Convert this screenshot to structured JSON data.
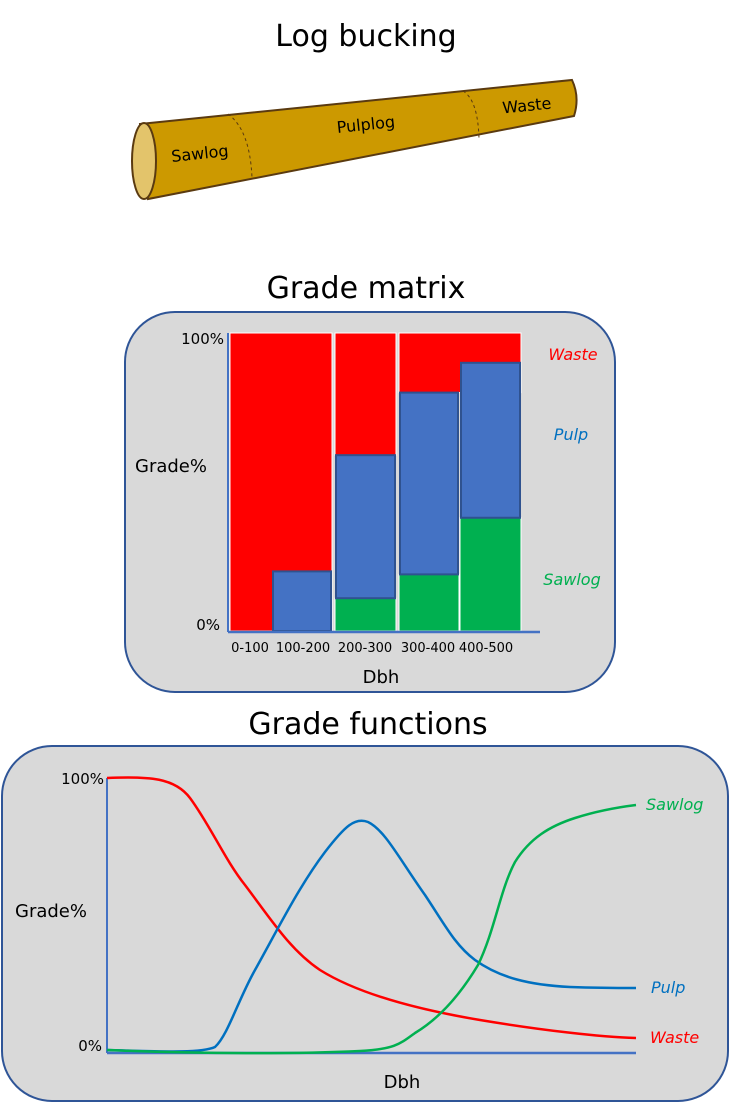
{
  "log": {
    "title": "Log bucking",
    "sections": [
      "Sawlog",
      "Pulplog",
      "Waste"
    ],
    "wood_color": "#CC9900",
    "end_color": "#E3C46B"
  },
  "matrix": {
    "title": "Grade matrix",
    "ylabel": "Grade%",
    "xlabel": "Dbh",
    "ytick_top": "100%",
    "ytick_bottom": "0%",
    "categories": [
      "0-100",
      "100-200",
      "200-300",
      "300-400",
      "400-500"
    ],
    "legend": {
      "waste": "Waste",
      "pulp": "Pulp",
      "sawlog": "Sawlog"
    },
    "values_percent": {
      "sawlog": [
        0,
        0,
        11,
        19,
        38
      ],
      "pulp": [
        0,
        20,
        48,
        61,
        52
      ],
      "waste": [
        100,
        80,
        41,
        20,
        10
      ]
    }
  },
  "functions": {
    "title": "Grade functions",
    "ylabel": "Grade%",
    "xlabel": "Dbh",
    "ytick_top": "100%",
    "ytick_bottom": "0%",
    "legend": {
      "sawlog": "Sawlog",
      "pulp": "Pulp",
      "waste": "Waste"
    }
  },
  "colors": {
    "waste": "#FF0000",
    "pulp": "#4472C4",
    "pulp_line": "#0070C0",
    "sawlog": "#00B050",
    "panel": "#D9D9D9",
    "panel_border": "#2F5597",
    "axis": "#4472C4"
  }
}
